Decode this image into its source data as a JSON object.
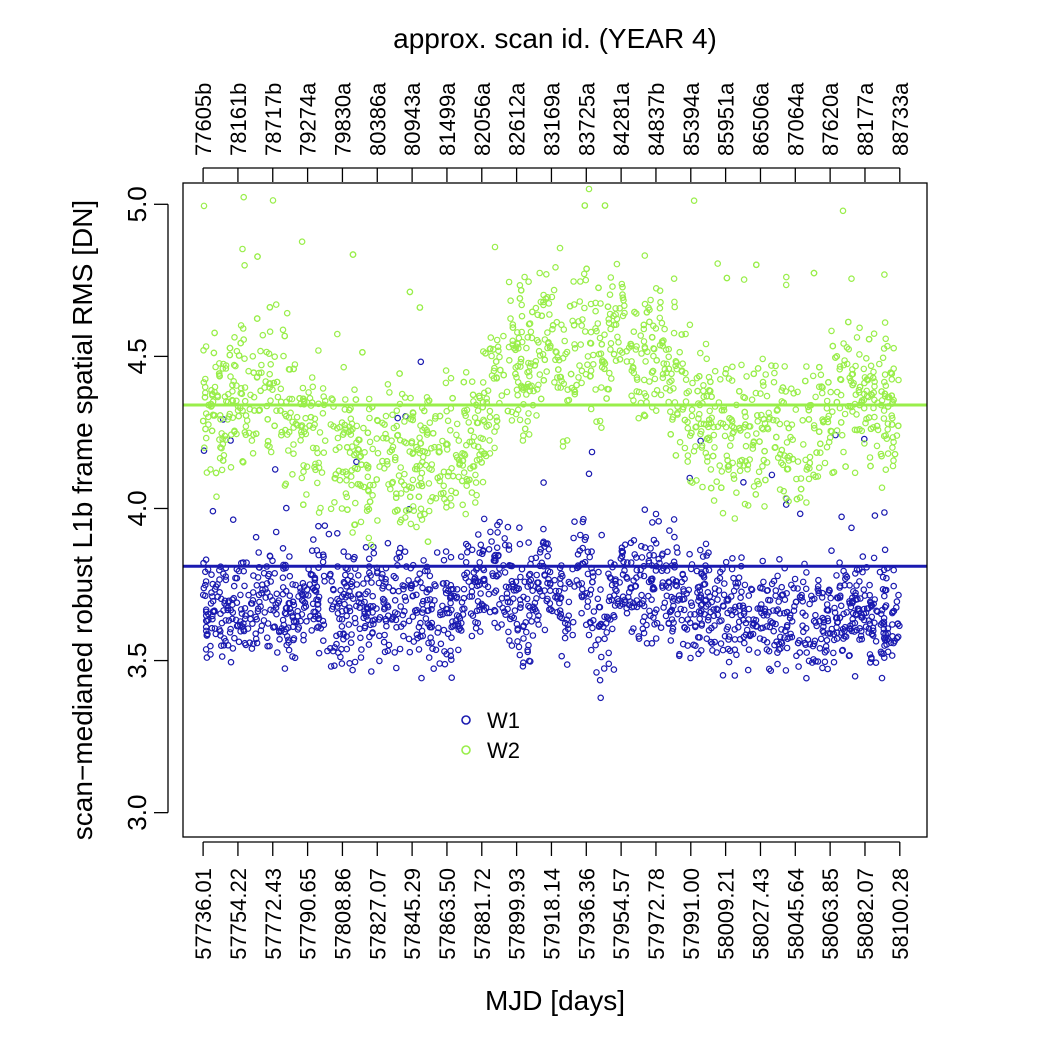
{
  "chart_data": {
    "type": "scatter",
    "title": "",
    "xlabel": "MJD [days]",
    "ylabel": "scan−medianed robust L1b frame spatial RMS [DN]",
    "top_axis_label": "approx. scan id. (YEAR 4)",
    "xlim": [
      57725.5,
      58114.5
    ],
    "ylim": [
      2.92,
      5.07
    ],
    "grid": false,
    "legend_position": "center-bottom",
    "x_ticks": [
      57736.01,
      57754.22,
      57772.43,
      57790.65,
      57808.86,
      57827.07,
      57845.29,
      57863.5,
      57881.72,
      57899.93,
      57918.14,
      57936.36,
      57954.57,
      57972.78,
      57991.0,
      58009.21,
      58027.43,
      58045.64,
      58063.85,
      58082.07,
      58100.28
    ],
    "x_tick_labels": [
      "57736.01",
      "57754.22",
      "57772.43",
      "57790.65",
      "57808.86",
      "57827.07",
      "57845.29",
      "57863.50",
      "57881.72",
      "57899.93",
      "57918.14",
      "57936.36",
      "57954.57",
      "57972.78",
      "57991.00",
      "58009.21",
      "58027.43",
      "58045.64",
      "58063.85",
      "58082.07",
      "58100.28"
    ],
    "top_tick_labels": [
      "77605b",
      "78161b",
      "78717b",
      "79274a",
      "79830a",
      "80386a",
      "80943a",
      "81499a",
      "82056a",
      "82612a",
      "83169a",
      "83725a",
      "84281a",
      "84837b",
      "85394a",
      "85951a",
      "86506a",
      "87064a",
      "87620a",
      "88177a",
      "88733a"
    ],
    "y_ticks": [
      3.0,
      3.5,
      4.0,
      4.5,
      5.0
    ],
    "y_tick_labels": [
      "3.0",
      "3.5",
      "4.0",
      "4.5",
      "5.0"
    ],
    "series": [
      {
        "name": "W1",
        "color": "#1a1ab0",
        "median_line": 3.81,
        "trend_x": [
          57736,
          57745,
          57755,
          57765,
          57775,
          57785,
          57795,
          57805,
          57815,
          57825,
          57835,
          57845,
          57855,
          57865,
          57875,
          57885,
          57895,
          57905,
          57915,
          57925,
          57935,
          57945,
          57955,
          57965,
          57975,
          57985,
          57995,
          58005,
          58015,
          58025,
          58035,
          58045,
          58055,
          58065,
          58075,
          58085,
          58100
        ],
        "trend_y": [
          3.68,
          3.66,
          3.64,
          3.68,
          3.7,
          3.65,
          3.72,
          3.62,
          3.66,
          3.7,
          3.68,
          3.7,
          3.62,
          3.66,
          3.68,
          3.82,
          3.72,
          3.66,
          3.8,
          3.62,
          3.82,
          3.58,
          3.8,
          3.7,
          3.78,
          3.68,
          3.7,
          3.66,
          3.65,
          3.62,
          3.64,
          3.63,
          3.62,
          3.64,
          3.66,
          3.64,
          3.62
        ],
        "spread": 0.14
      },
      {
        "name": "W2",
        "color": "#99ee4a",
        "median_line": 4.34,
        "trend_x": [
          57736,
          57745,
          57755,
          57765,
          57775,
          57785,
          57795,
          57805,
          57815,
          57825,
          57835,
          57845,
          57855,
          57865,
          57875,
          57885,
          57895,
          57905,
          57915,
          57925,
          57935,
          57945,
          57955,
          57965,
          57975,
          57985,
          57995,
          58005,
          58015,
          58025,
          58035,
          58045,
          58055,
          58065,
          58075,
          58085,
          58100
        ],
        "trend_y": [
          4.34,
          4.3,
          4.36,
          4.4,
          4.38,
          4.28,
          4.22,
          4.2,
          4.16,
          4.18,
          4.14,
          4.16,
          4.14,
          4.2,
          4.18,
          4.36,
          4.5,
          4.46,
          4.58,
          4.4,
          4.62,
          4.5,
          4.66,
          4.44,
          4.6,
          4.36,
          4.3,
          4.26,
          4.22,
          4.22,
          4.26,
          4.24,
          4.26,
          4.3,
          4.4,
          4.32,
          4.3
        ],
        "spread": 0.18
      }
    ]
  }
}
